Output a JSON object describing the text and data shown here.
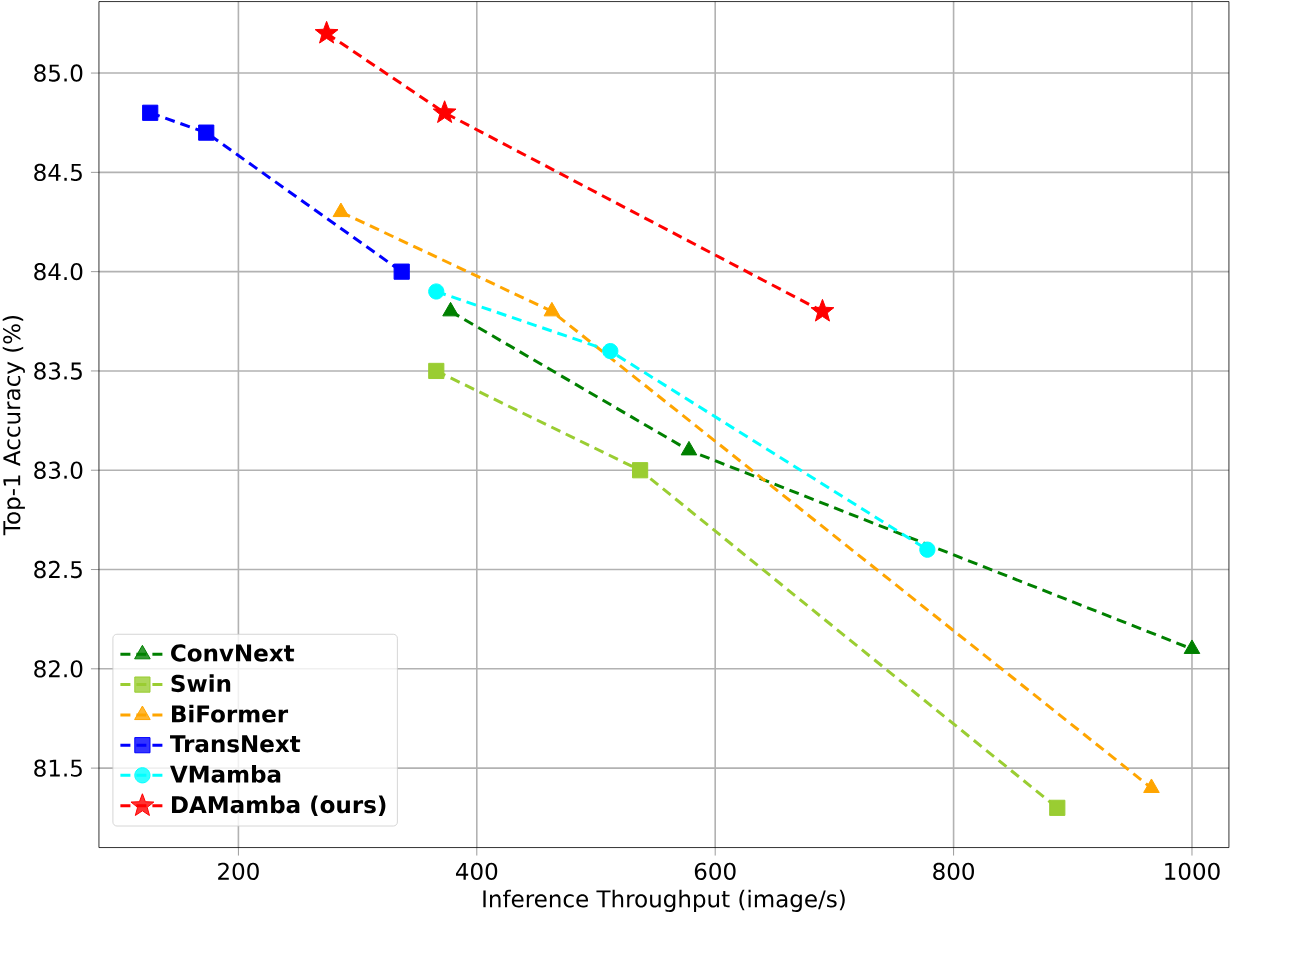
{
  "chart_data": {
    "type": "line",
    "xlabel": "Inference Throughput (image/s)",
    "ylabel": "Top-1 Accuracy (%)",
    "xlim": [
      83,
      1031
    ],
    "ylim": [
      81.1,
      85.36
    ],
    "xticks": [
      200,
      400,
      600,
      800,
      1000
    ],
    "yticks": [
      {
        "value": 81.5,
        "label": "81.5"
      },
      {
        "value": 82.0,
        "label": "82.0"
      },
      {
        "value": 82.5,
        "label": "82.5"
      },
      {
        "value": 83.0,
        "label": "83.0"
      },
      {
        "value": 83.5,
        "label": "83.5"
      },
      {
        "value": 84.0,
        "label": "84.0"
      },
      {
        "value": 84.5,
        "label": "84.5"
      },
      {
        "value": 85.0,
        "label": "85.0"
      }
    ],
    "grid": true,
    "legend": "bottom left",
    "line_style": "dashed",
    "series": [
      {
        "name": "ConvNext",
        "color": "#008000",
        "marker": "triangle",
        "x": [
          378,
          578,
          1000
        ],
        "values": [
          83.8,
          83.1,
          82.1
        ]
      },
      {
        "name": "Swin",
        "color": "#9acd32",
        "marker": "square",
        "x": [
          366,
          537,
          887
        ],
        "values": [
          83.5,
          83.0,
          81.3
        ]
      },
      {
        "name": "BiFormer",
        "color": "#ffa500",
        "marker": "triangle",
        "x": [
          286,
          463,
          966
        ],
        "values": [
          84.3,
          83.8,
          81.4
        ]
      },
      {
        "name": "TransNext",
        "color": "#0000ff",
        "marker": "square",
        "x": [
          126,
          173,
          337
        ],
        "values": [
          84.8,
          84.7,
          84.0
        ]
      },
      {
        "name": "VMamba",
        "color": "#00ffff",
        "marker": "circle",
        "x": [
          366,
          512,
          778
        ],
        "values": [
          83.9,
          83.6,
          82.6
        ]
      },
      {
        "name": "DAMamba (ours)",
        "color": "#ff0000",
        "marker": "star",
        "x": [
          274,
          373,
          690
        ],
        "values": [
          85.2,
          84.8,
          83.8
        ]
      }
    ]
  }
}
